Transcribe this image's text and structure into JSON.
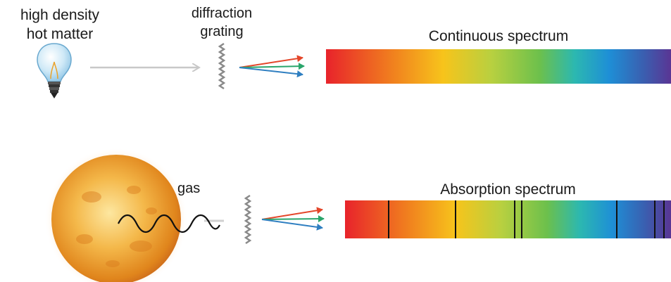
{
  "source_label": {
    "line1": "high density",
    "line2": "hot matter"
  },
  "grating_label": {
    "line1": "diffraction",
    "line2": "grating"
  },
  "continuous": {
    "title": "Continuous spectrum"
  },
  "absorption": {
    "title": "Absorption spectrum",
    "gas_label": "gas",
    "line_count": 7
  },
  "colors": {
    "spectrum": [
      "#e8232b",
      "#f07a1f",
      "#f7b81b",
      "#c8d43a",
      "#7dc24a",
      "#2bb8b0",
      "#1e90d6",
      "#3a5fb0",
      "#5a3a9a"
    ],
    "ray_red": "#e4462a",
    "ray_green": "#2aa56b",
    "ray_blue": "#2f7fc1",
    "arrow_gray": "#c8c8c8",
    "sun": "#f0a52a"
  },
  "icons": [
    "light-bulb-icon",
    "sun-icon",
    "wave-icon"
  ]
}
